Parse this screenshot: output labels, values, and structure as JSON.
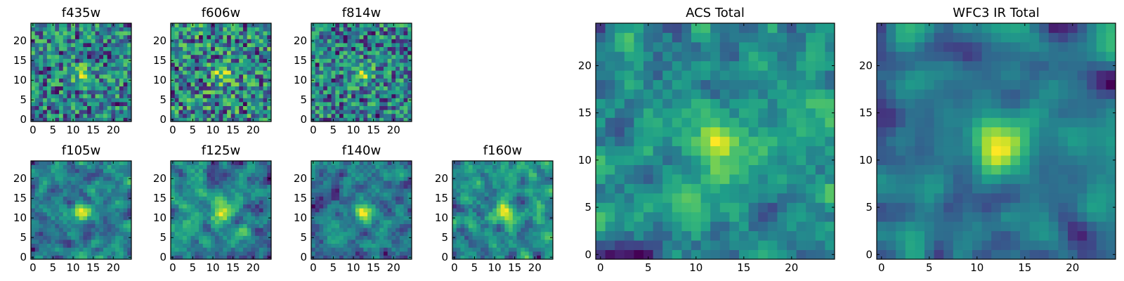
{
  "chart_data": [
    {
      "type": "heatmap",
      "title": "f435w",
      "grid_size": 25,
      "xticks": [
        0,
        5,
        10,
        15,
        20
      ],
      "yticks": [
        0,
        5,
        10,
        15,
        20
      ],
      "xlim": [
        -0.5,
        24.5
      ],
      "ylim": [
        -0.5,
        24.5
      ],
      "colormap": "viridis",
      "pattern": {
        "smoothness": 0,
        "seed": 11
      }
    },
    {
      "type": "heatmap",
      "title": "f606w",
      "grid_size": 25,
      "xticks": [
        0,
        5,
        10,
        15,
        20
      ],
      "yticks": [
        0,
        5,
        10,
        15,
        20
      ],
      "xlim": [
        -0.5,
        24.5
      ],
      "ylim": [
        -0.5,
        24.5
      ],
      "colormap": "viridis",
      "pattern": {
        "smoothness": 0,
        "seed": 23
      }
    },
    {
      "type": "heatmap",
      "title": "f814w",
      "grid_size": 25,
      "xticks": [
        0,
        5,
        10,
        15,
        20
      ],
      "yticks": [
        0,
        5,
        10,
        15,
        20
      ],
      "xlim": [
        -0.5,
        24.5
      ],
      "ylim": [
        -0.5,
        24.5
      ],
      "colormap": "viridis",
      "pattern": {
        "smoothness": 0,
        "seed": 37
      }
    },
    {
      "type": "heatmap",
      "title": "f105w",
      "grid_size": 25,
      "xticks": [
        0,
        5,
        10,
        15,
        20
      ],
      "yticks": [
        0,
        5,
        10,
        15,
        20
      ],
      "xlim": [
        -0.5,
        24.5
      ],
      "ylim": [
        -0.5,
        24.5
      ],
      "colormap": "viridis",
      "pattern": {
        "smoothness": 1,
        "seed": 41
      }
    },
    {
      "type": "heatmap",
      "title": "f125w",
      "grid_size": 25,
      "xticks": [
        0,
        5,
        10,
        15,
        20
      ],
      "yticks": [
        0,
        5,
        10,
        15,
        20
      ],
      "xlim": [
        -0.5,
        24.5
      ],
      "ylim": [
        -0.5,
        24.5
      ],
      "colormap": "viridis",
      "pattern": {
        "smoothness": 1,
        "seed": 53
      }
    },
    {
      "type": "heatmap",
      "title": "f140w",
      "grid_size": 25,
      "xticks": [
        0,
        5,
        10,
        15,
        20
      ],
      "yticks": [
        0,
        5,
        10,
        15,
        20
      ],
      "xlim": [
        -0.5,
        24.5
      ],
      "ylim": [
        -0.5,
        24.5
      ],
      "colormap": "viridis",
      "pattern": {
        "smoothness": 1,
        "seed": 67
      }
    },
    {
      "type": "heatmap",
      "title": "f160w",
      "grid_size": 25,
      "xticks": [
        0,
        5,
        10,
        15,
        20
      ],
      "yticks": [
        0,
        5,
        10,
        15,
        20
      ],
      "xlim": [
        -0.5,
        24.5
      ],
      "ylim": [
        -0.5,
        24.5
      ],
      "colormap": "viridis",
      "pattern": {
        "smoothness": 1,
        "seed": 79
      }
    },
    {
      "type": "heatmap",
      "title": "ACS Total",
      "grid_size": 25,
      "xticks": [
        0,
        5,
        10,
        15,
        20
      ],
      "yticks": [
        0,
        5,
        10,
        15,
        20
      ],
      "xlim": [
        -0.5,
        24.5
      ],
      "ylim": [
        -0.5,
        24.5
      ],
      "colormap": "viridis",
      "pattern": {
        "smoothness": 1,
        "seed": 97
      }
    },
    {
      "type": "heatmap",
      "title": "WFC3 IR Total",
      "grid_size": 25,
      "xticks": [
        0,
        5,
        10,
        15,
        20
      ],
      "yticks": [
        0,
        5,
        10,
        15,
        20
      ],
      "xlim": [
        -0.5,
        24.5
      ],
      "ylim": [
        -0.5,
        24.5
      ],
      "colormap": "viridis",
      "pattern": {
        "smoothness": 2,
        "seed": 113
      }
    }
  ]
}
